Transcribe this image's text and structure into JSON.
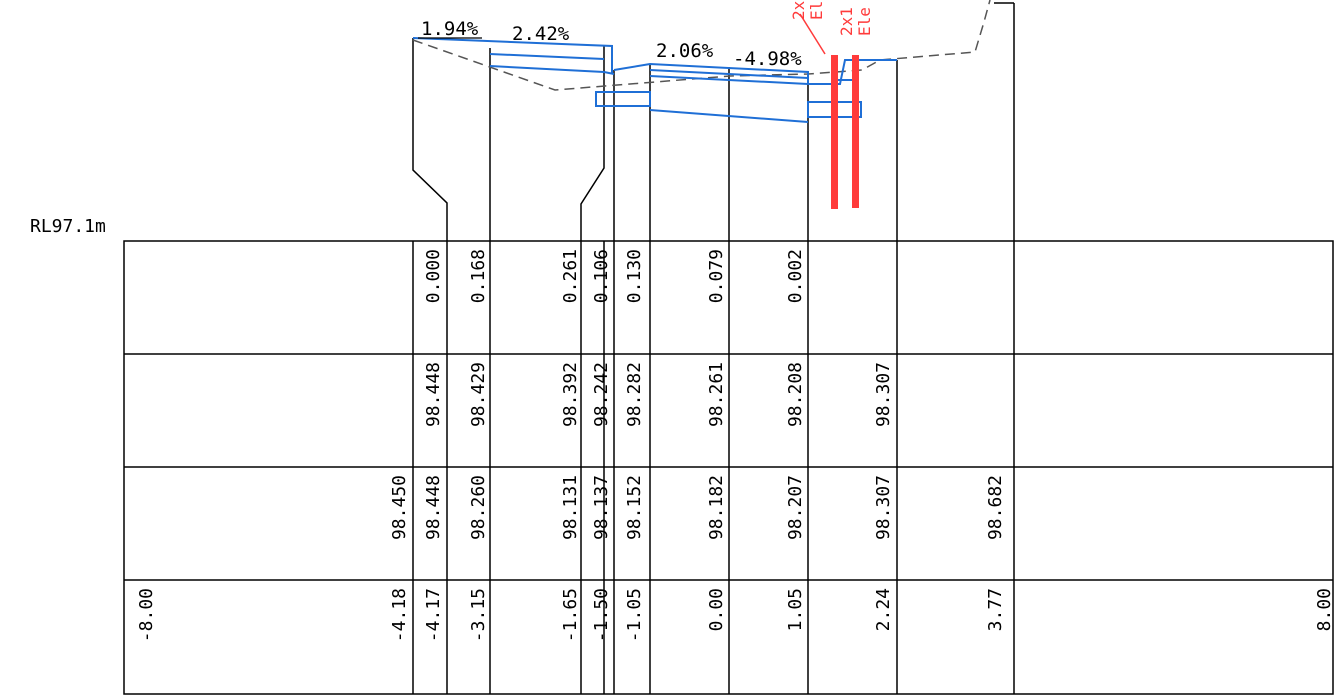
{
  "datum_label": "RL97.1m",
  "grades": [
    "1.94%",
    "2.42%",
    "2.06%",
    "-4.98%"
  ],
  "service_labels": [
    "2x",
    "El",
    "2x1",
    "Ele"
  ],
  "colors": {
    "design": "#1f6fd6",
    "existing": "#555555",
    "service": "#ff3b3b",
    "ink": "#000000"
  },
  "table": {
    "row_cut_fill": [
      {
        "offset": -4.17,
        "text": "0.000"
      },
      {
        "offset": -3.15,
        "text": "0.168"
      },
      {
        "offset": -1.65,
        "text": "0.261"
      },
      {
        "offset": -1.5,
        "text": "0.106"
      },
      {
        "offset": -1.05,
        "text": "0.130"
      },
      {
        "offset": 0.0,
        "text": "0.079"
      },
      {
        "offset": 1.05,
        "text": "0.002"
      }
    ],
    "row_design_level": [
      {
        "offset": -4.17,
        "text": "98.448"
      },
      {
        "offset": -3.15,
        "text": "98.429"
      },
      {
        "offset": -1.65,
        "text": "98.392"
      },
      {
        "offset": -1.5,
        "text": "98.242"
      },
      {
        "offset": -1.05,
        "text": "98.282"
      },
      {
        "offset": 0.0,
        "text": "98.261"
      },
      {
        "offset": 1.05,
        "text": "98.208"
      },
      {
        "offset": 2.24,
        "text": "98.307"
      }
    ],
    "row_existing_level": [
      {
        "offset": -4.18,
        "text": "98.450"
      },
      {
        "offset": -4.17,
        "text": "98.448"
      },
      {
        "offset": -3.15,
        "text": "98.260"
      },
      {
        "offset": -1.65,
        "text": "98.131"
      },
      {
        "offset": -1.5,
        "text": "98.137"
      },
      {
        "offset": -1.05,
        "text": "98.152"
      },
      {
        "offset": 0.0,
        "text": "98.182"
      },
      {
        "offset": 1.05,
        "text": "98.207"
      },
      {
        "offset": 2.24,
        "text": "98.307"
      },
      {
        "offset": 3.77,
        "text": "98.682"
      }
    ],
    "row_offset": [
      {
        "offset": -8.0,
        "text": "-8.00"
      },
      {
        "offset": -4.18,
        "text": "-4.18"
      },
      {
        "offset": -4.17,
        "text": "-4.17"
      },
      {
        "offset": -3.15,
        "text": "-3.15"
      },
      {
        "offset": -1.65,
        "text": "-1.65"
      },
      {
        "offset": -1.5,
        "text": "-1.50"
      },
      {
        "offset": -1.05,
        "text": "-1.05"
      },
      {
        "offset": 0.0,
        "text": "0.00"
      },
      {
        "offset": 1.05,
        "text": "1.05"
      },
      {
        "offset": 2.24,
        "text": "2.24"
      },
      {
        "offset": 3.77,
        "text": "3.77"
      },
      {
        "offset": 8.0,
        "text": "8.00"
      }
    ]
  }
}
